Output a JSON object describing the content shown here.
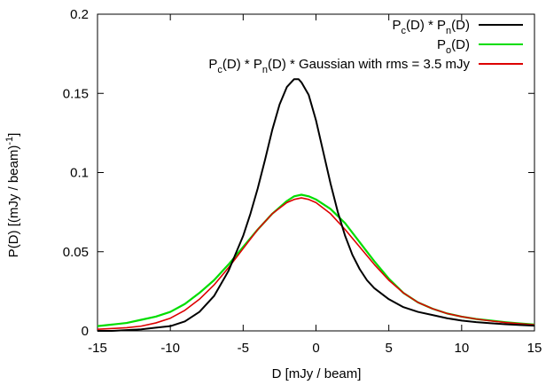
{
  "chart_data": {
    "type": "line",
    "xlabel": "D [mJy / beam]",
    "ylabel": "P(D) [(mJy / beam)-1]",
    "ylabel_parts": {
      "base": "P(D) [(mJy / beam)",
      "sup": "-1",
      "tail": "]"
    },
    "xlim": [
      -15,
      15
    ],
    "ylim": [
      0,
      0.2
    ],
    "x_ticks": [
      -15,
      -10,
      -5,
      0,
      5,
      10,
      15
    ],
    "x_tick_labels": [
      "-15",
      "-10",
      "-5",
      "0",
      "5",
      "10",
      "15"
    ],
    "y_ticks": [
      0,
      0.05,
      0.1,
      0.15,
      0.2
    ],
    "y_tick_labels": [
      "0",
      "0.05",
      "0.1",
      "0.15",
      "0.2"
    ],
    "grid": false,
    "legend_position": "top-right",
    "series": [
      {
        "name": "Pc(D) * Pn(D)",
        "legend_parts": [
          [
            "P",
            ""
          ],
          [
            "c",
            "sub"
          ],
          [
            "(D) * P",
            ""
          ],
          [
            "n",
            "sub"
          ],
          [
            "(D)",
            ""
          ]
        ],
        "color": "#000000",
        "x": [
          -15,
          -14,
          -13,
          -12,
          -11,
          -10,
          -9,
          -8,
          -7,
          -6,
          -5,
          -4.5,
          -4,
          -3.5,
          -3,
          -2.5,
          -2,
          -1.5,
          -1.2,
          -1,
          -0.5,
          0,
          0.5,
          1,
          1.5,
          2,
          2.5,
          3,
          3.5,
          4,
          5,
          6,
          7,
          8,
          9,
          10,
          11,
          12,
          13,
          14,
          15
        ],
        "y": [
          0.0,
          0.0,
          0.0005,
          0.001,
          0.002,
          0.003,
          0.006,
          0.012,
          0.022,
          0.038,
          0.06,
          0.074,
          0.09,
          0.108,
          0.127,
          0.143,
          0.154,
          0.159,
          0.159,
          0.157,
          0.149,
          0.133,
          0.113,
          0.093,
          0.075,
          0.06,
          0.048,
          0.039,
          0.032,
          0.027,
          0.02,
          0.015,
          0.012,
          0.01,
          0.008,
          0.0065,
          0.0055,
          0.0048,
          0.0042,
          0.0037,
          0.0033
        ]
      },
      {
        "name": "Po(D)",
        "legend_parts": [
          [
            "P",
            ""
          ],
          [
            "o",
            "sub"
          ],
          [
            "(D)",
            ""
          ]
        ],
        "color": "#00dd00",
        "x": [
          -15,
          -14,
          -13,
          -12,
          -11,
          -10,
          -9,
          -8,
          -7,
          -6,
          -5,
          -4,
          -3,
          -2,
          -1.5,
          -1,
          -0.5,
          0,
          1,
          2,
          3,
          4,
          5,
          6,
          7,
          8,
          9,
          10,
          11,
          12,
          13,
          14,
          15
        ],
        "y": [
          0.003,
          0.004,
          0.005,
          0.007,
          0.009,
          0.012,
          0.017,
          0.024,
          0.032,
          0.042,
          0.053,
          0.064,
          0.074,
          0.082,
          0.085,
          0.086,
          0.085,
          0.083,
          0.077,
          0.068,
          0.056,
          0.044,
          0.033,
          0.024,
          0.018,
          0.014,
          0.011,
          0.009,
          0.0075,
          0.0065,
          0.0055,
          0.0047,
          0.004
        ]
      },
      {
        "name": "Pc(D) * Pn(D) * Gaussian with rms = 3.5 mJy",
        "legend_parts": [
          [
            "P",
            ""
          ],
          [
            "c",
            "sub"
          ],
          [
            "(D) * P",
            ""
          ],
          [
            "n",
            "sub"
          ],
          [
            "(D) * Gaussian with rms = 3.5 mJy",
            ""
          ]
        ],
        "color": "#dd0000",
        "x": [
          -15,
          -14,
          -13,
          -12,
          -11,
          -10,
          -9,
          -8,
          -7,
          -6,
          -5,
          -4,
          -3,
          -2,
          -1.5,
          -1,
          -0.5,
          0,
          1,
          2,
          3,
          4,
          5,
          6,
          7,
          8,
          9,
          10,
          11,
          12,
          13,
          14,
          15
        ],
        "y": [
          0.001,
          0.0015,
          0.002,
          0.003,
          0.005,
          0.008,
          0.013,
          0.02,
          0.029,
          0.04,
          0.052,
          0.064,
          0.074,
          0.081,
          0.083,
          0.084,
          0.083,
          0.081,
          0.074,
          0.064,
          0.053,
          0.042,
          0.032,
          0.024,
          0.018,
          0.014,
          0.011,
          0.009,
          0.0075,
          0.0063,
          0.0053,
          0.0045,
          0.0038
        ]
      }
    ]
  }
}
